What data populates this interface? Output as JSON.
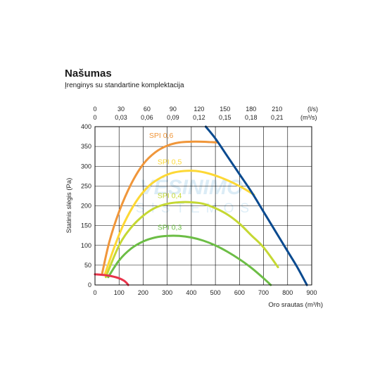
{
  "chart_data": {
    "type": "line",
    "title": "Našumas",
    "subtitle": "Įrenginys su standartine komplektacija",
    "xlabel": "Oro srautas (m³/h)",
    "ylabel": "Statinis slėgis (Pa)",
    "xlim": [
      0,
      900
    ],
    "ylim": [
      0,
      400
    ],
    "xticks": [
      "0",
      "100",
      "200",
      "300",
      "400",
      "500",
      "600",
      "700",
      "800",
      "900"
    ],
    "yticks": [
      "0",
      "50",
      "100",
      "150",
      "200",
      "250",
      "300",
      "350",
      "400"
    ],
    "top_axis_ls": [
      "0",
      "30",
      "60",
      "90",
      "120",
      "150",
      "180",
      "210"
    ],
    "top_axis_m3s": [
      "0",
      "0,03",
      "0,06",
      "0,09",
      "0,12",
      "0,15",
      "0,18",
      "0,21"
    ],
    "top_unit_ls": "(l/s)",
    "top_unit_m3s": "(m³/s)",
    "grid": true,
    "watermark": {
      "line1": "VĖSINIMO",
      "line2": "SISTEMOS"
    },
    "series": [
      {
        "name": "SPI 0,6",
        "color": "#f0963a",
        "label_at": [
          275,
          372
        ],
        "x": [
          30,
          60,
          100,
          150,
          200,
          250,
          300,
          350,
          400,
          440,
          480,
          510
        ],
        "y": [
          30,
          110,
          185,
          255,
          305,
          335,
          352,
          360,
          362,
          362,
          361,
          360
        ]
      },
      {
        "name": "SPI 0,5",
        "color": "#fdd835",
        "label_at": [
          310,
          305
        ],
        "x": [
          40,
          80,
          120,
          170,
          220,
          270,
          320,
          370,
          420,
          470,
          520,
          570,
          620,
          660
        ],
        "y": [
          25,
          95,
          155,
          210,
          248,
          270,
          283,
          288,
          288,
          282,
          272,
          259,
          243,
          228
        ]
      },
      {
        "name": "SPI 0,4",
        "color": "#c5d833",
        "label_at": [
          310,
          220
        ],
        "x": [
          45,
          100,
          150,
          200,
          250,
          300,
          350,
          400,
          450,
          500,
          550,
          600,
          650,
          700,
          760
        ],
        "y": [
          20,
          100,
          145,
          175,
          195,
          205,
          209,
          209,
          205,
          194,
          178,
          155,
          125,
          95,
          45
        ]
      },
      {
        "name": "SPI 0,3",
        "color": "#6cbd45",
        "label_at": [
          310,
          140
        ],
        "x": [
          55,
          100,
          150,
          200,
          250,
          300,
          350,
          400,
          450,
          500,
          550,
          600,
          650,
          700,
          730
        ],
        "y": [
          20,
          62,
          92,
          110,
          120,
          124,
          124,
          120,
          112,
          100,
          84,
          65,
          43,
          17,
          0
        ]
      },
      {
        "name": "",
        "color": "#0a4a8f",
        "x": [
          460,
          500,
          550,
          600,
          650,
          700,
          750,
          800,
          840,
          880
        ],
        "y": [
          400,
          370,
          325,
          280,
          235,
          185,
          135,
          85,
          45,
          0
        ]
      },
      {
        "name": "",
        "color": "#e8334a",
        "x": [
          0,
          40,
          70,
          100,
          120,
          130,
          138
        ],
        "y": [
          27,
          25,
          22,
          17,
          11,
          6,
          0
        ]
      }
    ]
  }
}
